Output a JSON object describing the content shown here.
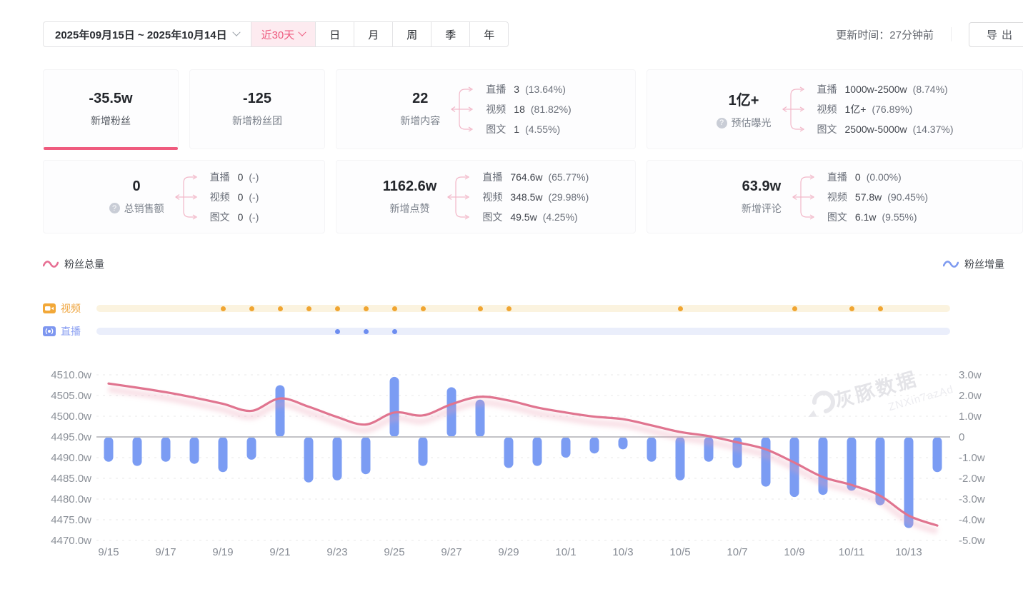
{
  "topbar": {
    "date_range": "2025年09月15日 ~ 2025年10月14日",
    "quick_range": "近30天",
    "period_tabs": [
      "日",
      "月",
      "周",
      "季",
      "年"
    ],
    "update_time": "更新时间：27分钟前",
    "export_label": "导出"
  },
  "stats": {
    "row1": [
      {
        "value": "-35.5w",
        "label": "新增粉丝",
        "active": true
      },
      {
        "value": "-125",
        "label": "新增粉丝团"
      },
      {
        "value": "22",
        "label": "新增内容",
        "breakdown": [
          {
            "name": "直播",
            "value": "3",
            "pct": "(13.64%)"
          },
          {
            "name": "视频",
            "value": "18",
            "pct": "(81.82%)"
          },
          {
            "name": "图文",
            "value": "1",
            "pct": "(4.55%)"
          }
        ]
      },
      {
        "value": "1亿+",
        "label": "预估曝光",
        "help": true,
        "breakdown": [
          {
            "name": "直播",
            "value": "1000w-2500w",
            "pct": "(8.74%)"
          },
          {
            "name": "视频",
            "value": "1亿+",
            "pct": "(76.89%)"
          },
          {
            "name": "图文",
            "value": "2500w-5000w",
            "pct": "(14.37%)"
          }
        ]
      }
    ],
    "row2": [
      {
        "value": "0",
        "label": "总销售额",
        "help": true,
        "breakdown": [
          {
            "name": "直播",
            "value": "0",
            "pct": "(-)"
          },
          {
            "name": "视频",
            "value": "0",
            "pct": "(-)"
          },
          {
            "name": "图文",
            "value": "0",
            "pct": "(-)"
          }
        ]
      },
      {
        "value": "1162.6w",
        "label": "新增点赞",
        "breakdown": [
          {
            "name": "直播",
            "value": "764.6w",
            "pct": "(65.77%)"
          },
          {
            "name": "视频",
            "value": "348.5w",
            "pct": "(29.98%)"
          },
          {
            "name": "图文",
            "value": "49.5w",
            "pct": "(4.25%)"
          }
        ]
      },
      {
        "value": "63.9w",
        "label": "新增评论",
        "breakdown": [
          {
            "name": "直播",
            "value": "0",
            "pct": "(0.00%)"
          },
          {
            "name": "视频",
            "value": "57.8w",
            "pct": "(90.45%)"
          },
          {
            "name": "图文",
            "value": "6.1w",
            "pct": "(9.55%)"
          }
        ]
      }
    ]
  },
  "legend": {
    "left": "粉丝总量",
    "right": "粉丝增量"
  },
  "timeline": {
    "video_label": "视频",
    "live_label": "直播"
  },
  "chart_data": {
    "type": "line+bar",
    "x": [
      "9/15",
      "9/16",
      "9/17",
      "9/18",
      "9/19",
      "9/20",
      "9/21",
      "9/22",
      "9/23",
      "9/24",
      "9/25",
      "9/26",
      "9/27",
      "9/28",
      "9/29",
      "9/30",
      "10/1",
      "10/2",
      "10/3",
      "10/4",
      "10/5",
      "10/6",
      "10/7",
      "10/8",
      "10/9",
      "10/10",
      "10/11",
      "10/12",
      "10/13",
      "10/14"
    ],
    "x_tick_labels": [
      "9/15",
      "9/17",
      "9/19",
      "9/21",
      "9/23",
      "9/25",
      "9/27",
      "9/29",
      "10/1",
      "10/3",
      "10/5",
      "10/7",
      "10/9",
      "10/11",
      "10/13"
    ],
    "series": [
      {
        "name": "粉丝总量",
        "type": "line",
        "axis": "left",
        "color": "#e0748f",
        "values": [
          4507.9,
          4506.9,
          4505.8,
          4504.5,
          4503.0,
          4501.3,
          4504.3,
          4502.3,
          4499.8,
          4498.0,
          4500.9,
          4500.2,
          4502.9,
          4504.7,
          4503.8,
          4502.1,
          4500.9,
          4499.9,
          4499.3,
          4497.8,
          4496.2,
          4495.2,
          4493.7,
          4492.0,
          4488.8,
          4485.3,
          4483.4,
          4480.8,
          4476.0,
          4473.6
        ]
      },
      {
        "name": "粉丝增量",
        "type": "bar",
        "axis": "right",
        "color": "#7b9cf3",
        "values": [
          -1.2,
          -1.4,
          -1.2,
          -1.3,
          -1.7,
          -1.1,
          2.5,
          -2.2,
          -2.1,
          -1.8,
          2.9,
          -1.4,
          2.4,
          1.8,
          -1.5,
          -1.4,
          -1.0,
          -0.8,
          -0.6,
          -1.2,
          -2.1,
          -1.2,
          -1.5,
          -2.4,
          -2.9,
          -2.8,
          -2.6,
          -3.3,
          -4.4,
          -1.7
        ]
      }
    ],
    "left_axis": {
      "ticks": [
        "4510.0w",
        "4505.0w",
        "4500.0w",
        "4495.0w",
        "4490.0w",
        "4485.0w",
        "4480.0w",
        "4475.0w",
        "4470.0w"
      ],
      "min": 4470,
      "max": 4510
    },
    "right_axis": {
      "ticks": [
        "3.0w",
        "2.0w",
        "1.0w",
        "0",
        "-1.0w",
        "-2.0w",
        "-3.0w",
        "-4.0w",
        "-5.0w"
      ],
      "min": -5,
      "max": 3
    },
    "markers": {
      "video_days": [
        "9/19",
        "9/20",
        "9/21",
        "9/22",
        "9/23",
        "9/24",
        "9/25",
        "9/26",
        "9/28",
        "9/29",
        "10/5",
        "10/9",
        "10/11",
        "10/12"
      ],
      "live_days": [
        "9/23",
        "9/24",
        "9/25"
      ]
    },
    "watermark": {
      "text": "灰豚数据",
      "code": "ZNXin7azAd"
    }
  }
}
